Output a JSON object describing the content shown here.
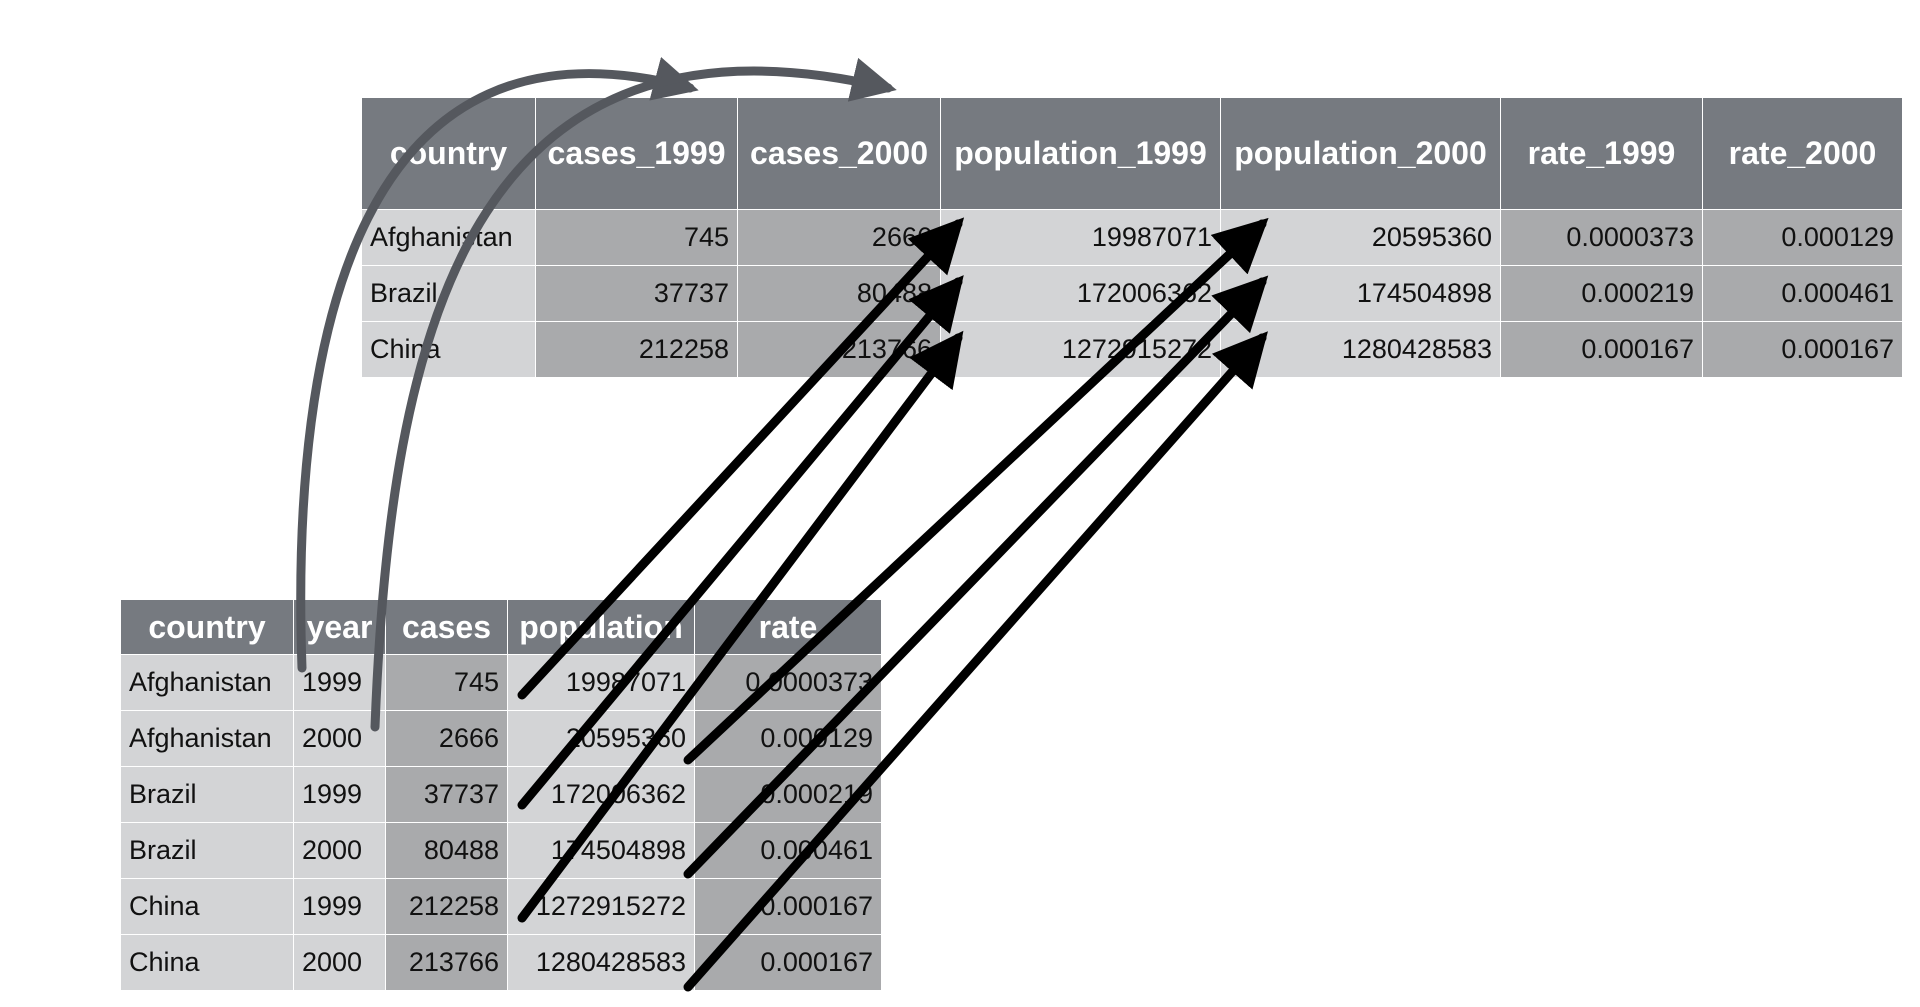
{
  "wide_table": {
    "columns": [
      "country",
      "cases_1999",
      "cases_2000",
      "population_1999",
      "population_2000",
      "rate_1999",
      "rate_2000"
    ],
    "rows": [
      [
        "Afghanistan",
        "745",
        "2666",
        "19987071",
        "20595360",
        "0.0000373",
        "0.000129"
      ],
      [
        "Brazil",
        "37737",
        "80488",
        "172006362",
        "174504898",
        "0.000219",
        "0.000461"
      ],
      [
        "China",
        "212258",
        "213766",
        "1272915272",
        "1280428583",
        "0.000167",
        "0.000167"
      ]
    ]
  },
  "long_table": {
    "columns": [
      "country",
      "year",
      "cases",
      "population",
      "rate"
    ],
    "rows": [
      [
        "Afghanistan",
        "1999",
        "745",
        "19987071",
        "0.0000373"
      ],
      [
        "Afghanistan",
        "2000",
        "2666",
        "20595360",
        "0.000129"
      ],
      [
        "Brazil",
        "1999",
        "37737",
        "172006362",
        "0.000219"
      ],
      [
        "Brazil",
        "2000",
        "80488",
        "174504898",
        "0.000461"
      ],
      [
        "China",
        "1999",
        "212258",
        "1272915272",
        "0.000167"
      ],
      [
        "China",
        "2000",
        "213766",
        "1280428583",
        "0.000167"
      ]
    ]
  },
  "colors": {
    "header": "#767a80",
    "cell_light": "#d3d4d6",
    "cell_mid": "#bcbdbf",
    "cell_dark": "#a9aaac",
    "curved_arrow": "#55585e",
    "straight_arrow": "#000000"
  }
}
